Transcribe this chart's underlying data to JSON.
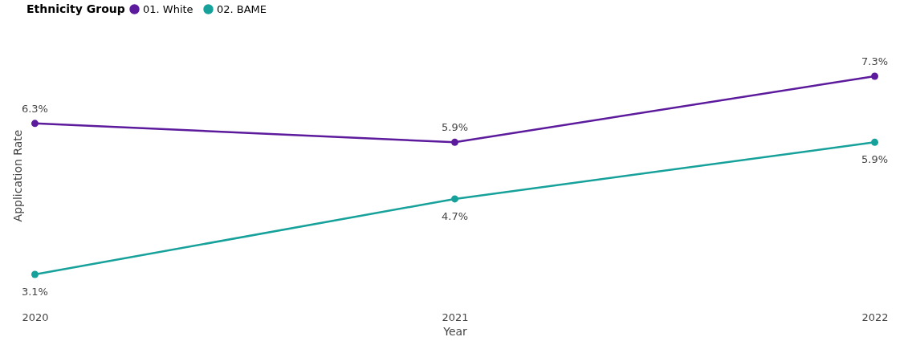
{
  "chart_data": {
    "type": "line",
    "xlabel": "Year",
    "ylabel": "Application Rate",
    "legend_title": "Ethnicity Group",
    "legend": "top left",
    "marker": "circle",
    "line_style": "solid",
    "grid": false,
    "tick_labels": "x",
    "categories": [
      "2020",
      "2021",
      "2022"
    ],
    "series": [
      {
        "name": "01. White",
        "color": "#5c1a9c",
        "values": [
          6.3,
          5.9,
          7.3
        ],
        "value_labels": [
          "6.3%",
          "5.9%",
          "7.3%"
        ]
      },
      {
        "name": "02. BAME",
        "color": "#17a19b",
        "values": [
          3.1,
          4.7,
          5.9
        ],
        "value_labels": [
          "3.1%",
          "4.7%",
          "5.9%"
        ]
      }
    ]
  }
}
